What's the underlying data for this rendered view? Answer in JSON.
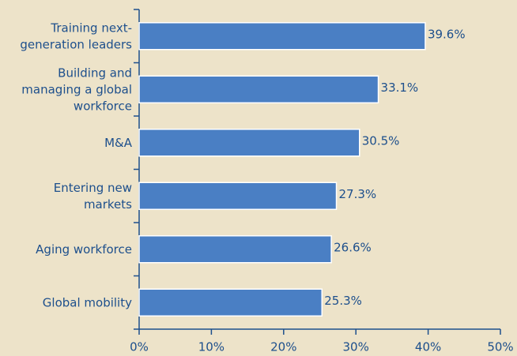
{
  "chart_data": {
    "type": "barh",
    "categories": [
      "Training next-\ngeneration leaders",
      "Building and\nmanaging a global\nworkforce",
      "M&A",
      "Entering new\nmarkets",
      "Aging workforce",
      "Global mobility"
    ],
    "values": [
      39.6,
      33.1,
      30.5,
      27.3,
      26.6,
      25.3
    ],
    "value_labels": [
      "39.6%",
      "33.1%",
      "30.5%",
      "27.3%",
      "26.6%",
      "25.3%"
    ],
    "color": "#4a7fc4",
    "xlim": [
      0,
      50
    ],
    "xticks": [
      {
        "value": 0,
        "label": "0%"
      },
      {
        "value": 10,
        "label": "10%"
      },
      {
        "value": 20,
        "label": "20%"
      },
      {
        "value": 30,
        "label": "30%"
      },
      {
        "value": 40,
        "label": "40%"
      },
      {
        "value": 50,
        "label": "50%"
      }
    ]
  }
}
